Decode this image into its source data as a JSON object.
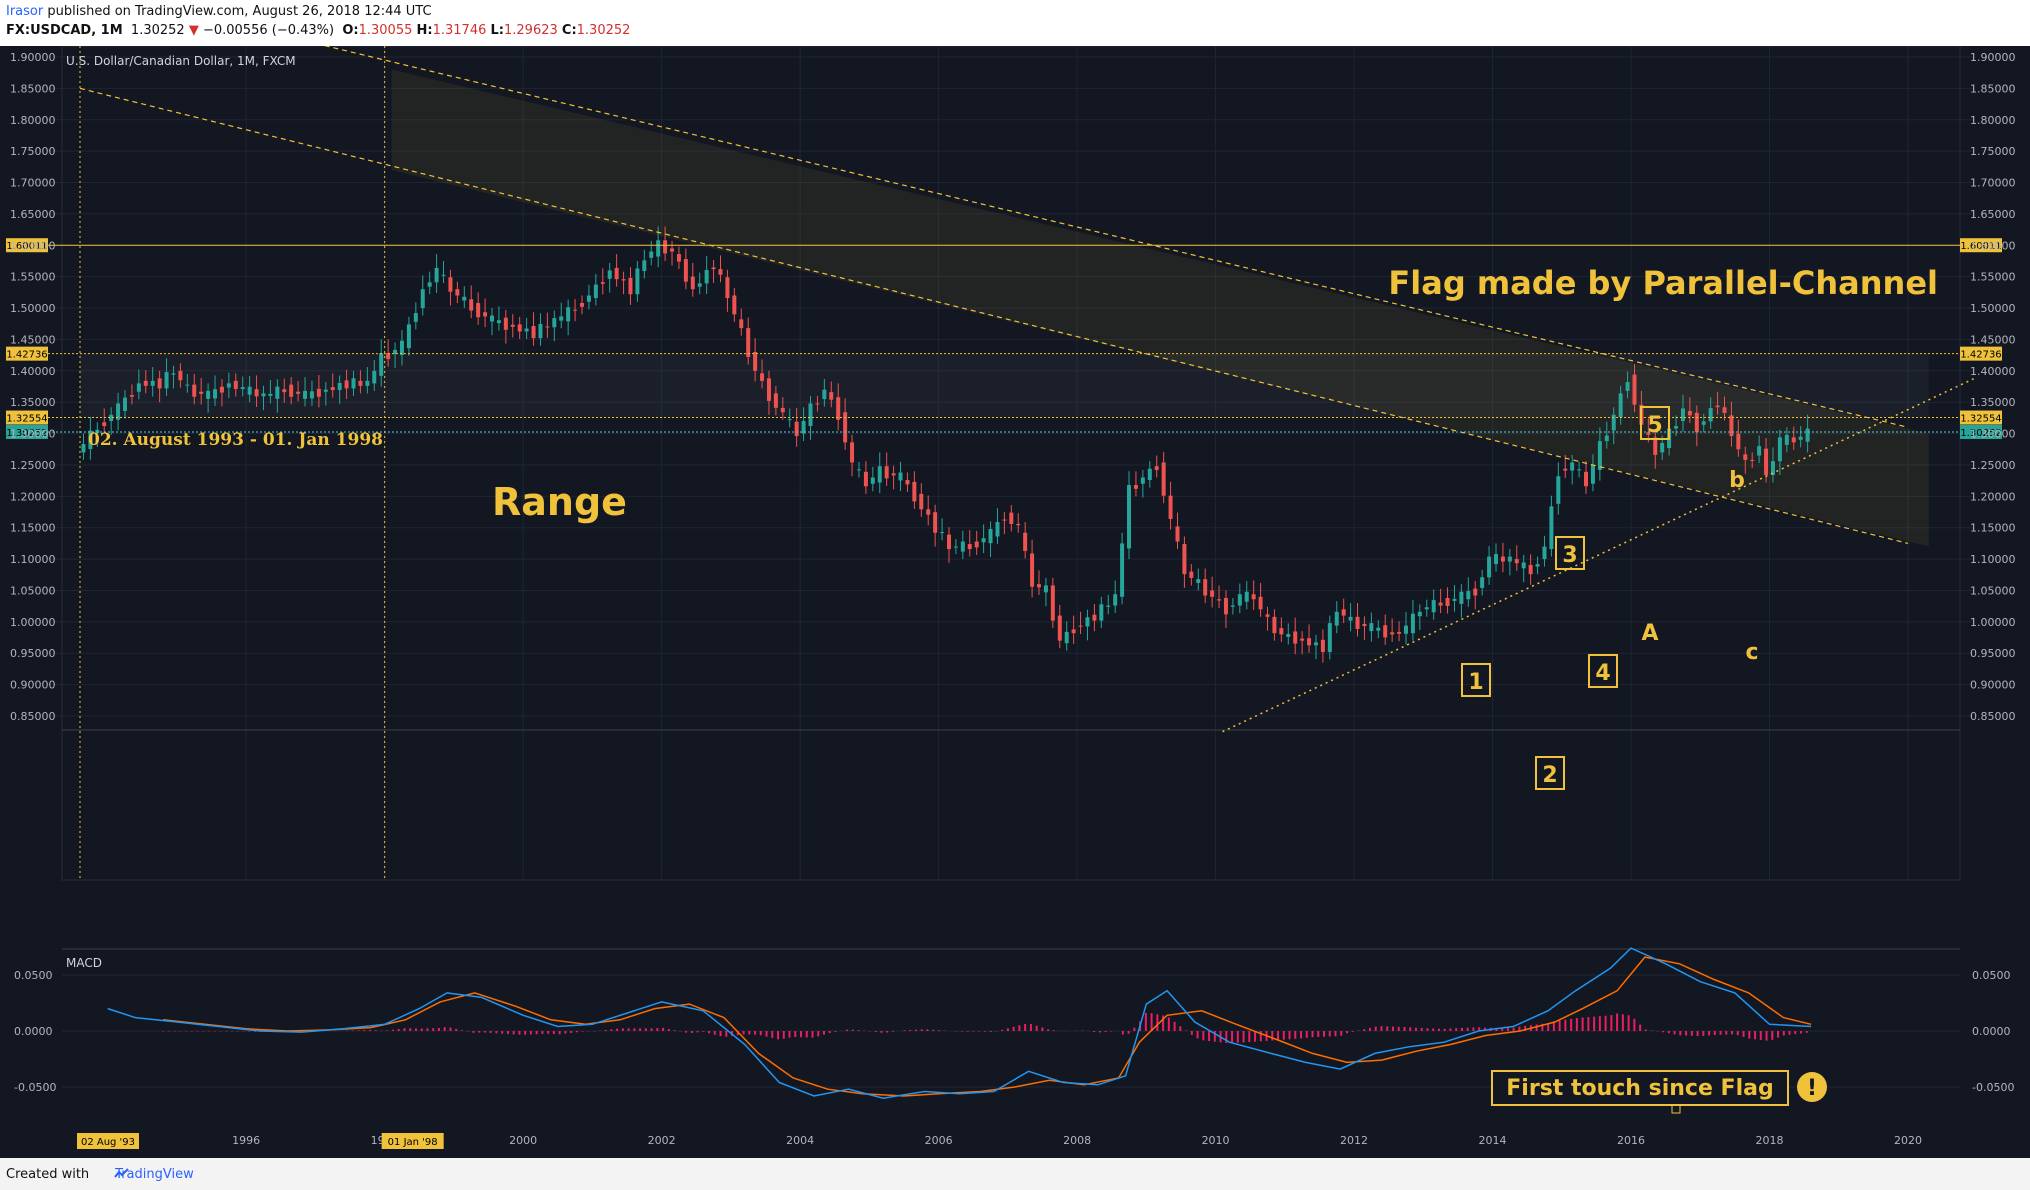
{
  "header": {
    "author": "Irasor",
    "published": " published on TradingView.com, August 26, 2018 12:44 UTC",
    "symbol": "FX:USDCAD, 1M",
    "last": "1.30252",
    "arrow": "▼",
    "change": "−0.00556 (−0.43%)",
    "o_label": "O:",
    "o": "1.30055",
    "h_label": "H:",
    "h": "1.31746",
    "l_label": "L:",
    "l": "1.29623",
    "c_label": "C:",
    "c": "1.30252"
  },
  "footer": {
    "created": "Created with",
    "brand": "TradingView"
  },
  "colors": {
    "background": "#131722",
    "up": "#26a69a",
    "down": "#ef5350",
    "annotation": "#f0c23b",
    "macd": "#2196f3",
    "signal": "#ff6d00",
    "histogram": "#e91e63",
    "last_price": "#4dd0e1"
  },
  "chart_data": {
    "type": "candlestick",
    "title": "U.S. Dollar/Canadian Dollar, 1M, FXCM",
    "price_axis": {
      "ticks": [
        "1.90000",
        "1.85000",
        "1.80000",
        "1.75000",
        "1.70000",
        "1.65000",
        "1.60000",
        "1.55000",
        "1.50000",
        "1.45000",
        "1.40000",
        "1.35000",
        "1.30000",
        "1.25000",
        "1.20000",
        "1.15000",
        "1.10000",
        "1.05000",
        "1.00000",
        "0.95000",
        "0.90000",
        "0.85000"
      ],
      "range": [
        0.825,
        1.935
      ]
    },
    "time_axis": {
      "ticks": [
        "1996",
        "1998",
        "2000",
        "2002",
        "2004",
        "2006",
        "2008",
        "2010",
        "2012",
        "2014",
        "2016",
        "2018",
        "2020"
      ],
      "range": [
        1993.2,
        2021.0
      ],
      "markers": [
        "02 Aug '93",
        "01 Jan '98"
      ]
    },
    "series_close": [
      [
        1993.6,
        1.27
      ],
      [
        1993.9,
        1.31
      ],
      [
        1994.2,
        1.34
      ],
      [
        1994.5,
        1.38
      ],
      [
        1994.8,
        1.38
      ],
      [
        1995.0,
        1.4
      ],
      [
        1995.2,
        1.37
      ],
      [
        1995.5,
        1.36
      ],
      [
        1995.8,
        1.38
      ],
      [
        1996.0,
        1.37
      ],
      [
        1996.3,
        1.36
      ],
      [
        1996.6,
        1.37
      ],
      [
        1996.9,
        1.36
      ],
      [
        1997.2,
        1.37
      ],
      [
        1997.5,
        1.38
      ],
      [
        1997.8,
        1.38
      ],
      [
        1998.0,
        1.42
      ],
      [
        1998.3,
        1.44
      ],
      [
        1998.6,
        1.53
      ],
      [
        1998.8,
        1.56
      ],
      [
        1999.0,
        1.53
      ],
      [
        1999.3,
        1.5
      ],
      [
        1999.6,
        1.48
      ],
      [
        1999.9,
        1.47
      ],
      [
        2000.2,
        1.46
      ],
      [
        2000.5,
        1.48
      ],
      [
        2000.8,
        1.5
      ],
      [
        2001.0,
        1.52
      ],
      [
        2001.3,
        1.56
      ],
      [
        2001.6,
        1.53
      ],
      [
        2001.8,
        1.58
      ],
      [
        2002.0,
        1.6
      ],
      [
        2002.2,
        1.59
      ],
      [
        2002.5,
        1.53
      ],
      [
        2002.8,
        1.57
      ],
      [
        2003.0,
        1.52
      ],
      [
        2003.2,
        1.46
      ],
      [
        2003.4,
        1.4
      ],
      [
        2003.6,
        1.36
      ],
      [
        2003.8,
        1.33
      ],
      [
        2004.0,
        1.3
      ],
      [
        2004.2,
        1.34
      ],
      [
        2004.4,
        1.37
      ],
      [
        2004.6,
        1.33
      ],
      [
        2004.8,
        1.25
      ],
      [
        2005.0,
        1.22
      ],
      [
        2005.2,
        1.24
      ],
      [
        2005.5,
        1.23
      ],
      [
        2005.7,
        1.2
      ],
      [
        2006.0,
        1.15
      ],
      [
        2006.2,
        1.12
      ],
      [
        2006.5,
        1.12
      ],
      [
        2006.8,
        1.14
      ],
      [
        2007.0,
        1.17
      ],
      [
        2007.2,
        1.15
      ],
      [
        2007.4,
        1.06
      ],
      [
        2007.6,
        1.05
      ],
      [
        2007.8,
        0.97
      ],
      [
        2008.0,
        0.99
      ],
      [
        2008.3,
        1.01
      ],
      [
        2008.6,
        1.04
      ],
      [
        2008.8,
        1.21
      ],
      [
        2009.0,
        1.23
      ],
      [
        2009.2,
        1.25
      ],
      [
        2009.4,
        1.16
      ],
      [
        2009.6,
        1.08
      ],
      [
        2009.8,
        1.06
      ],
      [
        2010.0,
        1.04
      ],
      [
        2010.2,
        1.02
      ],
      [
        2010.4,
        1.04
      ],
      [
        2010.6,
        1.04
      ],
      [
        2010.8,
        1.0
      ],
      [
        2011.0,
        0.98
      ],
      [
        2011.3,
        0.97
      ],
      [
        2011.6,
        0.96
      ],
      [
        2011.8,
        1.02
      ],
      [
        2012.0,
        1.0
      ],
      [
        2012.3,
        0.99
      ],
      [
        2012.6,
        0.98
      ],
      [
        2012.8,
        0.99
      ],
      [
        2013.0,
        1.02
      ],
      [
        2013.3,
        1.03
      ],
      [
        2013.6,
        1.04
      ],
      [
        2013.8,
        1.05
      ],
      [
        2014.0,
        1.1
      ],
      [
        2014.3,
        1.1
      ],
      [
        2014.6,
        1.08
      ],
      [
        2014.8,
        1.12
      ],
      [
        2015.0,
        1.24
      ],
      [
        2015.2,
        1.25
      ],
      [
        2015.4,
        1.22
      ],
      [
        2015.6,
        1.28
      ],
      [
        2015.8,
        1.33
      ],
      [
        2016.0,
        1.39
      ],
      [
        2016.2,
        1.31
      ],
      [
        2016.4,
        1.27
      ],
      [
        2016.6,
        1.3
      ],
      [
        2016.8,
        1.34
      ],
      [
        2017.0,
        1.31
      ],
      [
        2017.3,
        1.35
      ],
      [
        2017.5,
        1.3
      ],
      [
        2017.7,
        1.25
      ],
      [
        2017.9,
        1.28
      ],
      [
        2018.0,
        1.23
      ],
      [
        2018.2,
        1.29
      ],
      [
        2018.4,
        1.29
      ],
      [
        2018.6,
        1.3
      ]
    ],
    "horizontal_levels": [
      {
        "label": "1.60011",
        "value": 1.60011
      },
      {
        "label": "1.42736",
        "value": 1.42736
      },
      {
        "label": "1.32554",
        "value": 1.32554
      },
      {
        "label": "1.30252",
        "value": 1.30252,
        "last_price": true
      }
    ],
    "annotations": {
      "flag_title": "Flag made by Parallel-Channel",
      "range_dates": "02. August 1993 - 01. Jan 1998",
      "range_label": "Range",
      "wave_1": "1",
      "wave_2": "2",
      "wave_3": "3",
      "wave_4": "4",
      "wave_5": "5",
      "wave_A": "A",
      "wave_b": "b",
      "wave_c": "c"
    },
    "macd": {
      "title": "MACD",
      "ticks": [
        "0.0500",
        "0.0000",
        "-0.0500"
      ],
      "range": [
        -0.072,
        0.075
      ],
      "macd_series": [
        [
          1994.0,
          0.02
        ],
        [
          1994.4,
          0.012
        ],
        [
          1995.0,
          0.008
        ],
        [
          1995.6,
          0.004
        ],
        [
          1996.2,
          0.0
        ],
        [
          1996.8,
          -0.001
        ],
        [
          1997.4,
          0.002
        ],
        [
          1998.0,
          0.006
        ],
        [
          1998.5,
          0.02
        ],
        [
          1998.9,
          0.034
        ],
        [
          1999.4,
          0.03
        ],
        [
          2000.0,
          0.014
        ],
        [
          2000.5,
          0.004
        ],
        [
          2001.0,
          0.006
        ],
        [
          2001.5,
          0.016
        ],
        [
          2002.0,
          0.026
        ],
        [
          2002.6,
          0.018
        ],
        [
          2003.2,
          -0.012
        ],
        [
          2003.7,
          -0.046
        ],
        [
          2004.2,
          -0.058
        ],
        [
          2004.7,
          -0.052
        ],
        [
          2005.2,
          -0.06
        ],
        [
          2005.8,
          -0.054
        ],
        [
          2006.3,
          -0.056
        ],
        [
          2006.8,
          -0.054
        ],
        [
          2007.3,
          -0.036
        ],
        [
          2007.8,
          -0.046
        ],
        [
          2008.3,
          -0.048
        ],
        [
          2008.7,
          -0.04
        ],
        [
          2009.0,
          0.024
        ],
        [
          2009.3,
          0.036
        ],
        [
          2009.7,
          0.008
        ],
        [
          2010.2,
          -0.01
        ],
        [
          2010.8,
          -0.02
        ],
        [
          2011.3,
          -0.028
        ],
        [
          2011.8,
          -0.034
        ],
        [
          2012.3,
          -0.02
        ],
        [
          2012.8,
          -0.014
        ],
        [
          2013.3,
          -0.01
        ],
        [
          2013.8,
          0.0
        ],
        [
          2014.3,
          0.004
        ],
        [
          2014.8,
          0.018
        ],
        [
          2015.2,
          0.036
        ],
        [
          2015.7,
          0.056
        ],
        [
          2016.0,
          0.074
        ],
        [
          2016.5,
          0.06
        ],
        [
          2017.0,
          0.044
        ],
        [
          2017.5,
          0.034
        ],
        [
          2018.0,
          0.006
        ],
        [
          2018.6,
          0.004
        ]
      ],
      "signal_series": [
        [
          1994.8,
          0.01
        ],
        [
          1995.4,
          0.006
        ],
        [
          1996.0,
          0.002
        ],
        [
          1996.6,
          0.0
        ],
        [
          1997.2,
          0.001
        ],
        [
          1997.8,
          0.003
        ],
        [
          1998.3,
          0.01
        ],
        [
          1998.8,
          0.026
        ],
        [
          1999.3,
          0.034
        ],
        [
          1999.9,
          0.022
        ],
        [
          2000.4,
          0.01
        ],
        [
          2000.9,
          0.006
        ],
        [
          2001.4,
          0.01
        ],
        [
          2001.9,
          0.02
        ],
        [
          2002.4,
          0.024
        ],
        [
          2002.9,
          0.012
        ],
        [
          2003.4,
          -0.02
        ],
        [
          2003.9,
          -0.042
        ],
        [
          2004.4,
          -0.052
        ],
        [
          2004.9,
          -0.056
        ],
        [
          2005.5,
          -0.058
        ],
        [
          2006.0,
          -0.056
        ],
        [
          2006.6,
          -0.054
        ],
        [
          2007.1,
          -0.05
        ],
        [
          2007.6,
          -0.044
        ],
        [
          2008.1,
          -0.048
        ],
        [
          2008.6,
          -0.042
        ],
        [
          2008.9,
          -0.01
        ],
        [
          2009.3,
          0.014
        ],
        [
          2009.8,
          0.018
        ],
        [
          2010.3,
          0.006
        ],
        [
          2010.9,
          -0.008
        ],
        [
          2011.4,
          -0.02
        ],
        [
          2011.9,
          -0.028
        ],
        [
          2012.4,
          -0.026
        ],
        [
          2012.9,
          -0.018
        ],
        [
          2013.4,
          -0.012
        ],
        [
          2013.9,
          -0.004
        ],
        [
          2014.4,
          0.0
        ],
        [
          2014.9,
          0.008
        ],
        [
          2015.3,
          0.02
        ],
        [
          2015.8,
          0.036
        ],
        [
          2016.2,
          0.066
        ],
        [
          2016.7,
          0.06
        ],
        [
          2017.2,
          0.046
        ],
        [
          2017.7,
          0.034
        ],
        [
          2018.2,
          0.012
        ],
        [
          2018.6,
          0.006
        ]
      ],
      "histogram_note": "positive/negative bars"
    },
    "callout": "First touch since Flag",
    "callout_icon": "exclamation-icon"
  }
}
